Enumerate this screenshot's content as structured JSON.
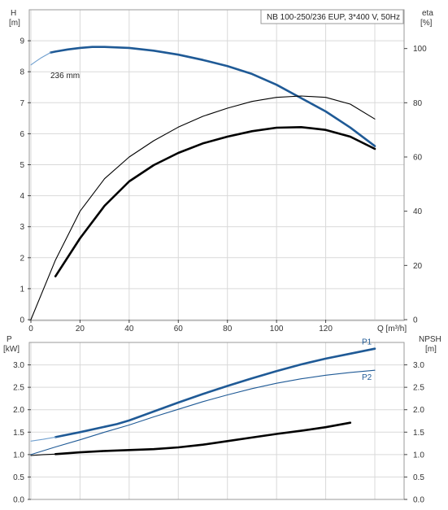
{
  "chart_data": [
    {
      "type": "line",
      "title": "NB 100-250/236 EUP, 3*400 V, 50Hz",
      "xlabel": "Q [m³/h]",
      "x_ticks": [
        "0",
        "20",
        "40",
        "60",
        "80",
        "100",
        "120"
      ],
      "xlim": [
        0,
        140
      ],
      "y_left": {
        "label_top": "H",
        "label_unit": "[m]",
        "ylim": [
          0,
          10
        ],
        "ticks": [
          "0",
          "1",
          "2",
          "3",
          "4",
          "5",
          "6",
          "7",
          "8",
          "9"
        ]
      },
      "y_right": {
        "label_top": "eta",
        "label_unit": "[%]",
        "ylim": [
          0,
          114.3
        ],
        "ticks": [
          "0",
          "20",
          "40",
          "60",
          "80",
          "100"
        ]
      },
      "annotation": "236 mm",
      "grid": true,
      "series": [
        {
          "axis": "left",
          "color": "#1f5a96",
          "style": "thick",
          "x": [
            8,
            10,
            15,
            20,
            25,
            30,
            40,
            50,
            60,
            70,
            80,
            90,
            100,
            110,
            120,
            130,
            140
          ],
          "y": [
            8.62,
            8.65,
            8.72,
            8.77,
            8.8,
            8.8,
            8.77,
            8.68,
            8.55,
            8.38,
            8.18,
            7.93,
            7.58,
            7.15,
            6.72,
            6.2,
            5.6
          ]
        },
        {
          "axis": "left",
          "color": "#6f9fcf",
          "style": "thin",
          "x": [
            0,
            2,
            4,
            6,
            8
          ],
          "y": [
            8.22,
            8.33,
            8.44,
            8.53,
            8.62
          ]
        },
        {
          "axis": "right",
          "color": "#000000",
          "style": "thin",
          "x": [
            0,
            10,
            20,
            30,
            40,
            50,
            60,
            70,
            80,
            90,
            100,
            110,
            120,
            130,
            140
          ],
          "y": [
            0,
            22.0,
            40.0,
            52.0,
            60.0,
            66.0,
            71.0,
            75.0,
            78.0,
            80.5,
            82.0,
            82.5,
            82.0,
            79.5,
            74.0
          ]
        },
        {
          "axis": "right",
          "color": "#000000",
          "style": "thick",
          "x": [
            10,
            20,
            30,
            40,
            50,
            60,
            70,
            80,
            90,
            100,
            110,
            120,
            130,
            140
          ],
          "y": [
            16.0,
            30.0,
            42.0,
            51.0,
            57.0,
            61.5,
            65.0,
            67.5,
            69.5,
            70.8,
            71.0,
            70.0,
            67.5,
            63.0
          ]
        }
      ]
    },
    {
      "type": "line",
      "xlim": [
        0,
        140
      ],
      "y_left": {
        "label_top": "P",
        "label_unit": "[kW]",
        "ylim": [
          0,
          3.5
        ],
        "ticks": [
          "0.0",
          "0.5",
          "1.0",
          "1.5",
          "2.0",
          "2.5",
          "3.0"
        ]
      },
      "y_right": {
        "label_top": "NPSH",
        "label_unit": "[m]",
        "ylim": [
          0,
          3.5
        ],
        "ticks": [
          "0.0",
          "0.5",
          "1.0",
          "1.5",
          "2.0",
          "2.5",
          "3.0"
        ]
      },
      "grid": true,
      "series": [
        {
          "name": "P1",
          "axis": "left",
          "color": "#1f5a96",
          "style": "thick",
          "x": [
            10,
            20,
            30,
            35,
            40,
            50,
            60,
            70,
            80,
            90,
            100,
            110,
            120,
            130,
            140
          ],
          "y": [
            1.39,
            1.5,
            1.62,
            1.68,
            1.76,
            1.96,
            2.16,
            2.35,
            2.53,
            2.7,
            2.86,
            3.01,
            3.14,
            3.25,
            3.36
          ]
        },
        {
          "axis": "left",
          "color": "#6f9fcf",
          "style": "thin",
          "x": [
            0,
            5,
            10
          ],
          "y": [
            1.3,
            1.34,
            1.39
          ]
        },
        {
          "name": "P2",
          "axis": "left",
          "color": "#1f5a96",
          "style": "thin",
          "x": [
            0,
            10,
            20,
            30,
            40,
            50,
            60,
            70,
            80,
            90,
            100,
            110,
            120,
            130,
            140
          ],
          "y": [
            1.0,
            1.17,
            1.33,
            1.5,
            1.66,
            1.84,
            2.01,
            2.18,
            2.33,
            2.47,
            2.59,
            2.69,
            2.77,
            2.83,
            2.88
          ]
        },
        {
          "axis": "right",
          "color": "#000000",
          "style": "thick",
          "x": [
            10,
            20,
            30,
            40,
            50,
            60,
            70,
            80,
            90,
            100,
            110,
            120,
            130
          ],
          "y": [
            1.01,
            1.05,
            1.08,
            1.1,
            1.12,
            1.16,
            1.22,
            1.3,
            1.38,
            1.46,
            1.53,
            1.61,
            1.71
          ]
        },
        {
          "axis": "right",
          "color": "#000000",
          "style": "thin",
          "x": [
            0,
            5,
            10
          ],
          "y": [
            0.98,
            1.0,
            1.01
          ]
        }
      ]
    }
  ]
}
